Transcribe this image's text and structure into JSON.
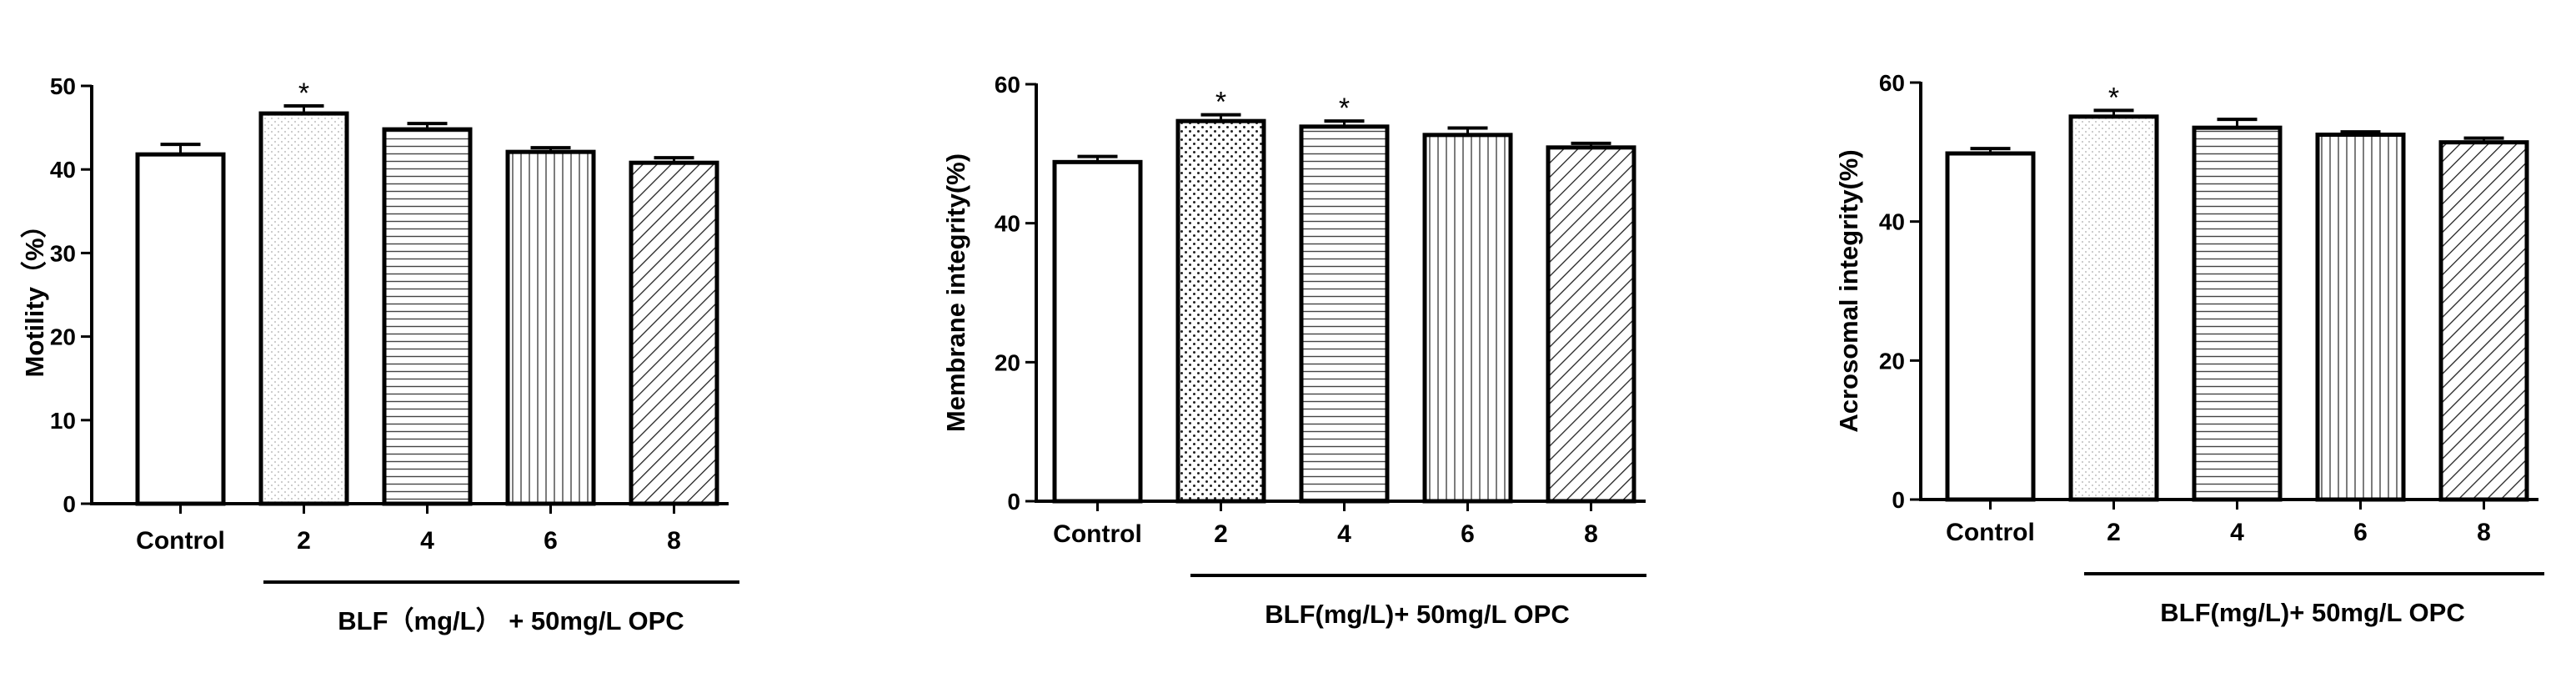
{
  "chart_data": [
    {
      "type": "bar",
      "ylabel": "Motility（%）",
      "ylim": [
        0,
        50
      ],
      "yticks": [
        0,
        10,
        20,
        30,
        40,
        50
      ],
      "categories": [
        "Control",
        "2",
        "4",
        "6",
        "8"
      ],
      "values": [
        41.8,
        46.7,
        44.8,
        42.1,
        40.8
      ],
      "errors": [
        1.2,
        0.9,
        0.7,
        0.5,
        0.6
      ],
      "significance": [
        "",
        "*",
        "",
        "",
        ""
      ],
      "group_label": "BLF（mg/L） + 50mg/L OPC",
      "patterns": [
        "blank",
        "stipple",
        "horizontal-lines",
        "vertical-lines",
        "diagonal-lines"
      ]
    },
    {
      "type": "bar",
      "ylabel": "Membrane integrity(%)",
      "ylim": [
        0,
        60
      ],
      "yticks": [
        0,
        20,
        40,
        60
      ],
      "categories": [
        "Control",
        "2",
        "4",
        "6",
        "8"
      ],
      "values": [
        48.8,
        54.7,
        53.9,
        52.7,
        50.9
      ],
      "errors": [
        0.8,
        0.9,
        0.8,
        1.0,
        0.6
      ],
      "significance": [
        "",
        "*",
        "*",
        "",
        ""
      ],
      "group_label": "BLF(mg/L)+ 50mg/L OPC",
      "patterns": [
        "blank",
        "dots",
        "horizontal-lines",
        "vertical-lines",
        "diagonal-lines"
      ]
    },
    {
      "type": "bar",
      "ylabel": "Acrosomal integrity(%)",
      "ylim": [
        0,
        60
      ],
      "yticks": [
        0,
        20,
        40,
        60
      ],
      "categories": [
        "Control",
        "2",
        "4",
        "6",
        "8"
      ],
      "values": [
        49.8,
        55.1,
        53.5,
        52.5,
        51.4
      ],
      "errors": [
        0.7,
        0.9,
        1.2,
        0.4,
        0.6
      ],
      "significance": [
        "",
        "*",
        "",
        "",
        ""
      ],
      "group_label": "BLF(mg/L)+ 50mg/L OPC",
      "patterns": [
        "blank",
        "stipple",
        "horizontal-lines",
        "vertical-lines",
        "diagonal-lines"
      ]
    }
  ]
}
